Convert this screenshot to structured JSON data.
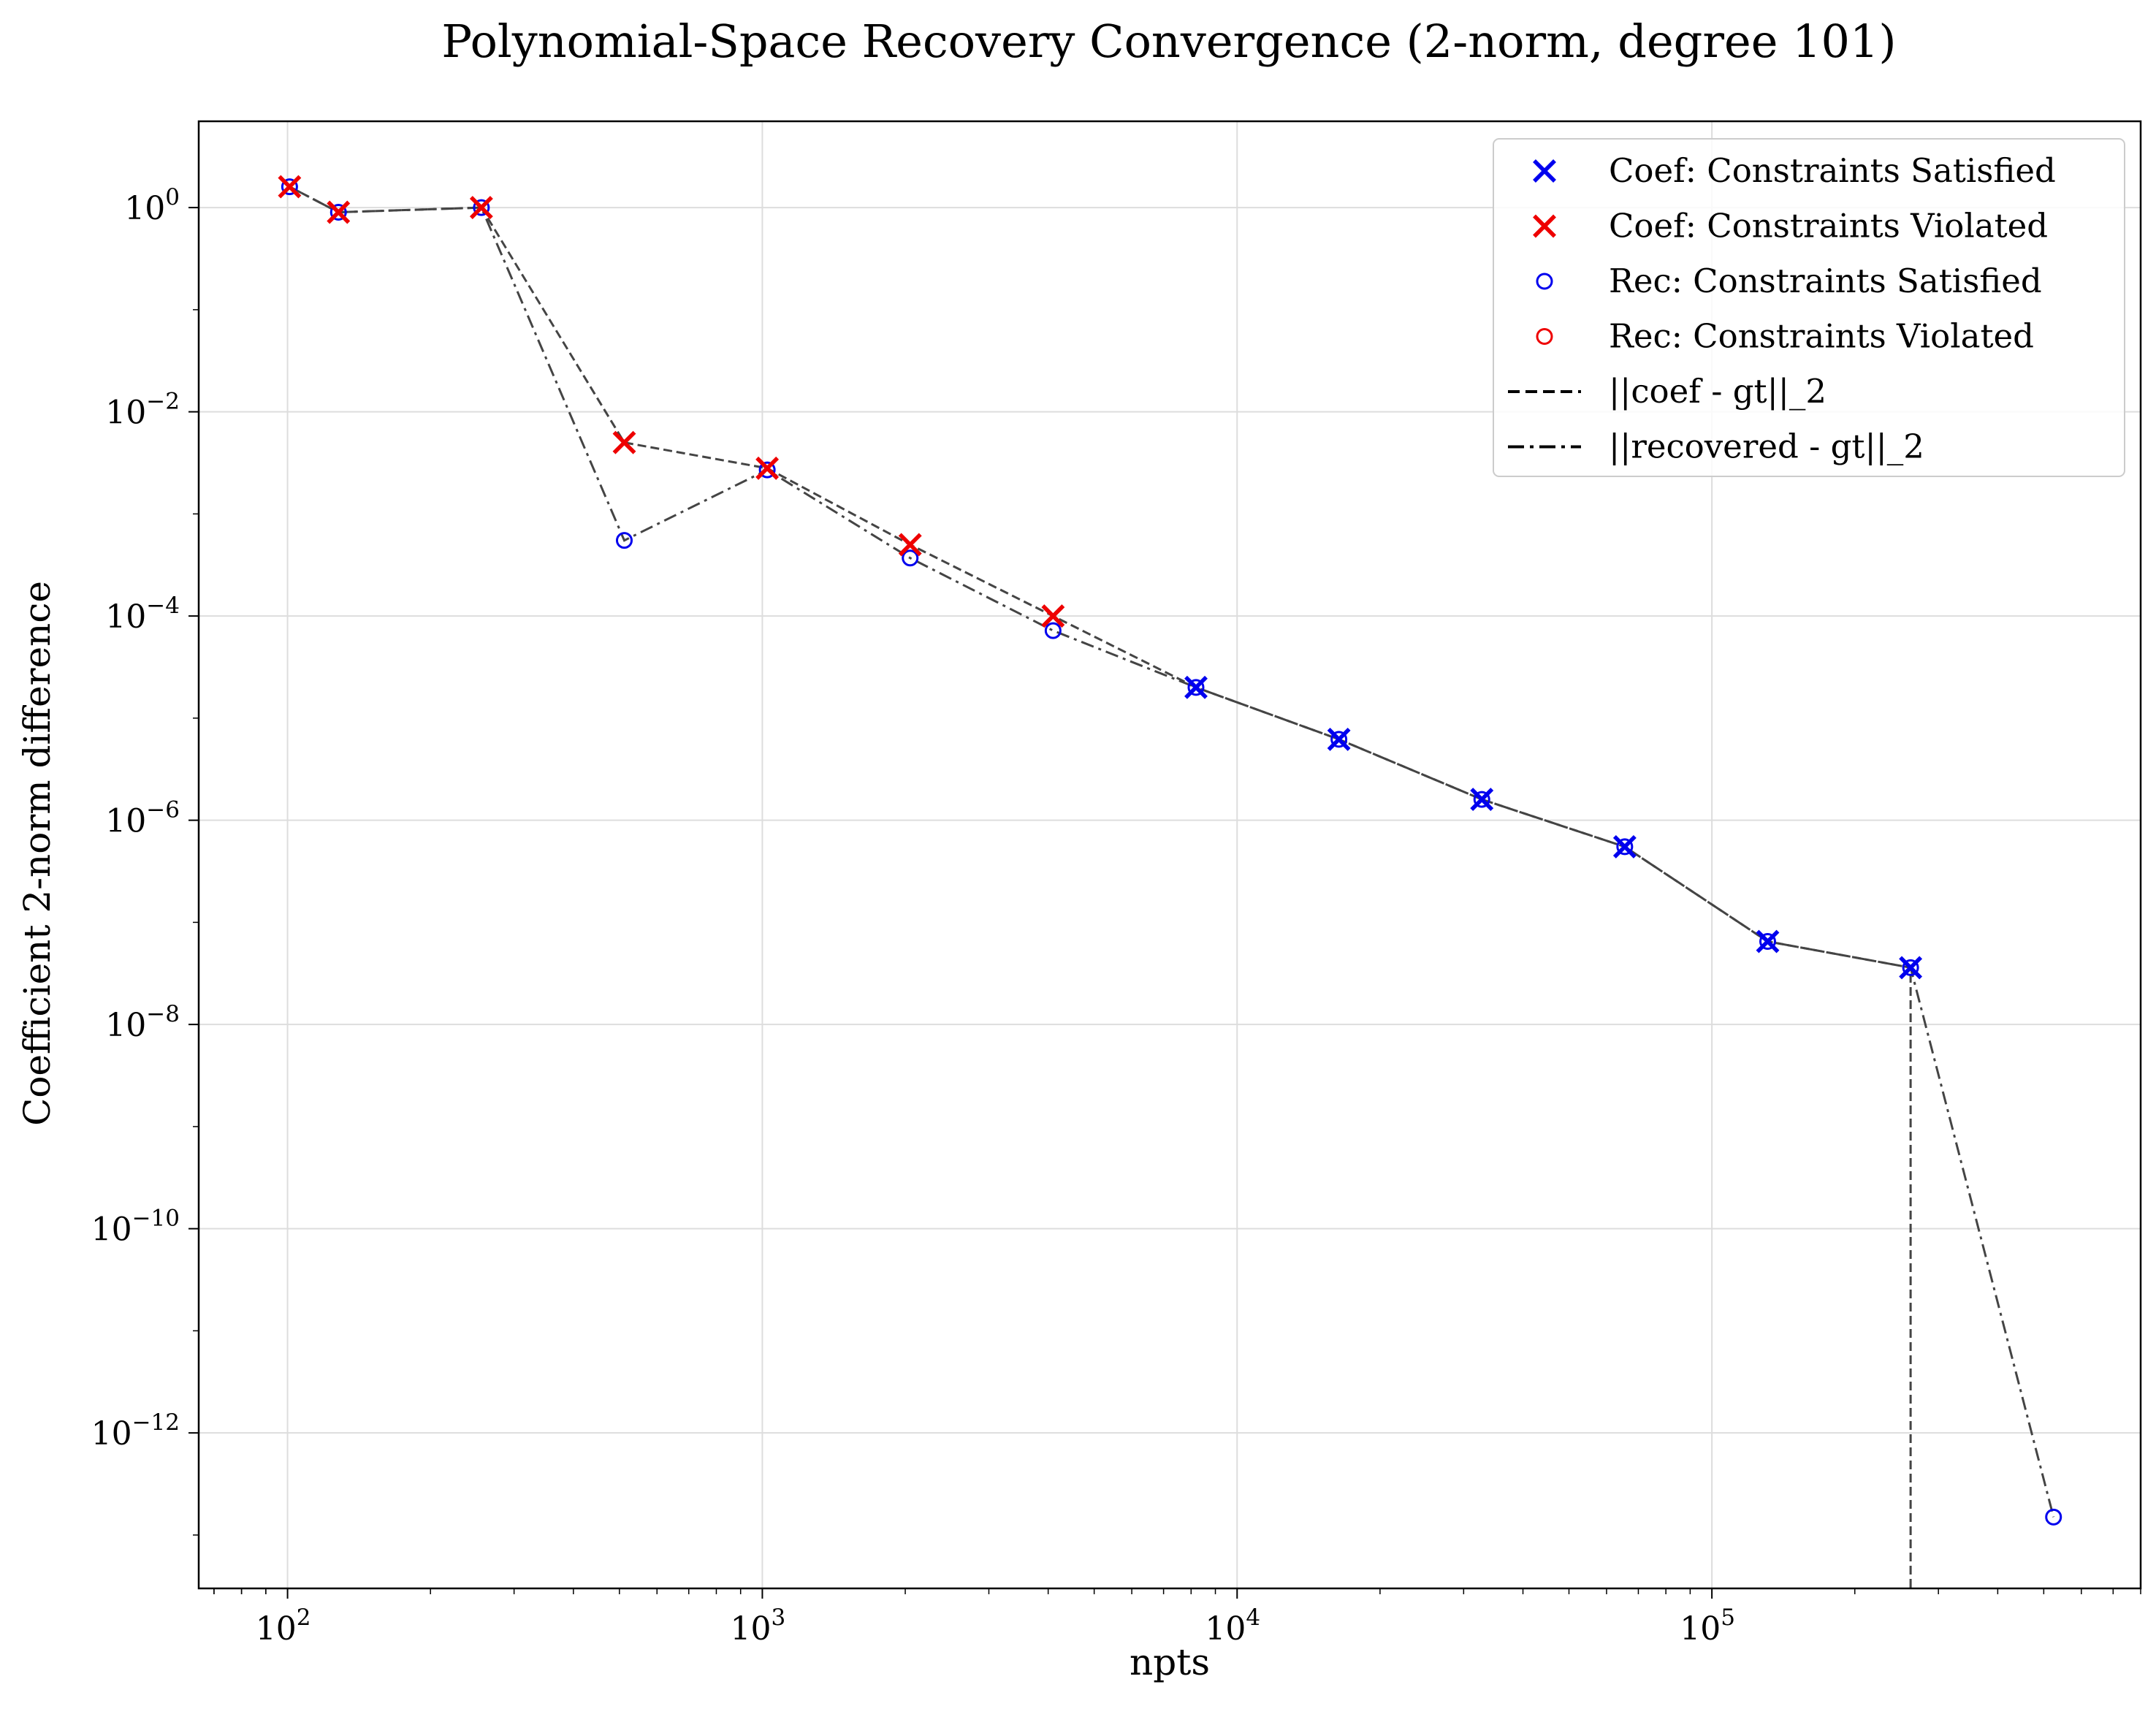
{
  "chart_data": {
    "type": "scatter",
    "title": "Polynomial-Space Recovery Convergence (2-norm, degree 101)",
    "xlabel": "npts",
    "ylabel": "Coefficient 2-norm difference",
    "xscale": "log",
    "yscale": "log",
    "xlim": [
      65,
      800000
    ],
    "ylim": [
      3e-14,
      7
    ],
    "x_ticks": [
      {
        "value": 100,
        "base": "10",
        "exp": "2"
      },
      {
        "value": 1000,
        "base": "10",
        "exp": "3"
      },
      {
        "value": 10000,
        "base": "10",
        "exp": "4"
      },
      {
        "value": 100000,
        "base": "10",
        "exp": "5"
      }
    ],
    "y_ticks": [
      {
        "value": 1,
        "base": "10",
        "exp": "0"
      },
      {
        "value": 0.01,
        "base": "10",
        "exp": "−2"
      },
      {
        "value": 0.0001,
        "base": "10",
        "exp": "−4"
      },
      {
        "value": 1e-06,
        "base": "10",
        "exp": "−6"
      },
      {
        "value": 1e-08,
        "base": "10",
        "exp": "−8"
      },
      {
        "value": 1e-10,
        "base": "10",
        "exp": "−10"
      },
      {
        "value": 1e-12,
        "base": "10",
        "exp": "−12"
      }
    ],
    "grid": true,
    "legend_position": "top-right",
    "colors": {
      "satisfied": "#0000ee",
      "violated": "#ee0000",
      "line": "#444444"
    },
    "coef_series": {
      "name": "||coef - gt||_2",
      "x": [
        101,
        128,
        256,
        512,
        1024,
        2048,
        4096,
        8192,
        16384,
        32768,
        65536,
        131072,
        262144,
        262144
      ],
      "y": [
        1.6,
        0.9,
        1.0,
        0.005,
        0.0028,
        0.0005,
        0.0001,
        2e-05,
        6.2e-06,
        1.6e-06,
        5.5e-07,
        6.5e-08,
        3.6e-08,
        3e-14
      ]
    },
    "rec_series": {
      "name": "||recovered - gt||_2",
      "x": [
        101,
        128,
        256,
        512,
        1024,
        2048,
        4096,
        8192,
        16384,
        32768,
        65536,
        131072,
        262144,
        524288
      ],
      "y": [
        1.6,
        0.9,
        1.0,
        0.00055,
        0.0027,
        0.00037,
        7.2e-05,
        2e-05,
        6.2e-06,
        1.6e-06,
        5.5e-07,
        6.5e-08,
        3.6e-08,
        1.5e-13
      ]
    },
    "coef_points": [
      {
        "x": 101,
        "y": 1.6,
        "status": "violated"
      },
      {
        "x": 128,
        "y": 0.9,
        "status": "violated"
      },
      {
        "x": 256,
        "y": 1.0,
        "status": "violated"
      },
      {
        "x": 512,
        "y": 0.005,
        "status": "violated"
      },
      {
        "x": 1024,
        "y": 0.0028,
        "status": "violated"
      },
      {
        "x": 2048,
        "y": 0.0005,
        "status": "violated"
      },
      {
        "x": 4096,
        "y": 0.0001,
        "status": "violated"
      },
      {
        "x": 8192,
        "y": 2e-05,
        "status": "satisfied"
      },
      {
        "x": 16384,
        "y": 6.2e-06,
        "status": "satisfied"
      },
      {
        "x": 32768,
        "y": 1.6e-06,
        "status": "satisfied"
      },
      {
        "x": 65536,
        "y": 5.5e-07,
        "status": "satisfied"
      },
      {
        "x": 131072,
        "y": 6.5e-08,
        "status": "satisfied"
      },
      {
        "x": 262144,
        "y": 3.6e-08,
        "status": "satisfied"
      }
    ],
    "rec_points": [
      {
        "x": 101,
        "y": 1.6,
        "status": "satisfied"
      },
      {
        "x": 128,
        "y": 0.9,
        "status": "satisfied"
      },
      {
        "x": 256,
        "y": 1.0,
        "status": "satisfied"
      },
      {
        "x": 512,
        "y": 0.00055,
        "status": "satisfied"
      },
      {
        "x": 1024,
        "y": 0.0027,
        "status": "satisfied"
      },
      {
        "x": 2048,
        "y": 0.00037,
        "status": "satisfied"
      },
      {
        "x": 4096,
        "y": 7.2e-05,
        "status": "satisfied"
      },
      {
        "x": 8192,
        "y": 2e-05,
        "status": "satisfied"
      },
      {
        "x": 16384,
        "y": 6.2e-06,
        "status": "satisfied"
      },
      {
        "x": 32768,
        "y": 1.6e-06,
        "status": "satisfied"
      },
      {
        "x": 65536,
        "y": 5.5e-07,
        "status": "satisfied"
      },
      {
        "x": 131072,
        "y": 6.5e-08,
        "status": "satisfied"
      },
      {
        "x": 262144,
        "y": 3.6e-08,
        "status": "satisfied"
      },
      {
        "x": 524288,
        "y": 1.5e-13,
        "status": "satisfied"
      }
    ],
    "legend": [
      {
        "label": "Coef: Constraints Satisfied",
        "marker": "x",
        "color": "#0000ee"
      },
      {
        "label": "Coef: Constraints Violated",
        "marker": "x",
        "color": "#ee0000"
      },
      {
        "label": "Rec: Constraints Satisfied",
        "marker": "o",
        "color": "#0000ee"
      },
      {
        "label": "Rec: Constraints Violated",
        "marker": "o",
        "color": "#ee0000"
      },
      {
        "label": "||coef - gt||_2",
        "marker": "dashed",
        "color": "#000000"
      },
      {
        "label": "||recovered - gt||_2",
        "marker": "dashdot",
        "color": "#000000"
      }
    ]
  }
}
